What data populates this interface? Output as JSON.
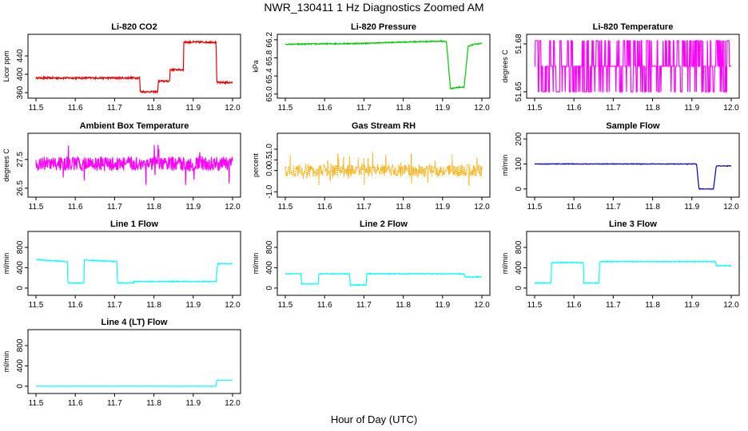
{
  "title": "NWR_130411  1 Hz Diagnostics Zoomed AM",
  "xlabel": "Hour of Day (UTC)",
  "chart_data": [
    {
      "type": "line",
      "title": "Li-820 CO2",
      "ylabel": "Licor ppm",
      "color": "#ee0000",
      "xlim": [
        11.5,
        12.0
      ],
      "xticks": [
        "11.5",
        "11.6",
        "11.7",
        "11.8",
        "11.9",
        "12.0"
      ],
      "ylim": [
        355,
        480
      ],
      "yticks": [
        "360",
        "400",
        "440"
      ],
      "noise": 2,
      "spiky": false,
      "series": [
        {
          "name": "Li-820 CO2",
          "x": [
            11.5,
            11.764,
            11.765,
            11.81,
            11.811,
            11.84,
            11.841,
            11.875,
            11.876,
            11.958,
            11.96,
            12.0
          ],
          "y": [
            392,
            392,
            362,
            362,
            385,
            385,
            410,
            410,
            470,
            470,
            382,
            382
          ]
        }
      ]
    },
    {
      "type": "line",
      "title": "Li-820 Pressure",
      "ylabel": "kPa",
      "color": "#00cc00",
      "xlim": [
        11.5,
        12.0
      ],
      "xticks": [
        "11.5",
        "11.6",
        "11.7",
        "11.8",
        "11.9",
        "12.0"
      ],
      "ylim": [
        64.98,
        66.25
      ],
      "yticks": [
        "65.0",
        "65.4",
        "65.8",
        "66.2"
      ],
      "noise": 0.012,
      "spiky": false,
      "series": [
        {
          "name": "Li-820 Pressure",
          "x": [
            11.5,
            11.7,
            11.8,
            11.905,
            11.91,
            11.92,
            11.94,
            11.955,
            11.965,
            11.98,
            12.0
          ],
          "y": [
            66.1,
            66.12,
            66.15,
            66.17,
            66.15,
            65.12,
            65.15,
            65.16,
            66.05,
            66.1,
            66.12
          ]
        }
      ]
    },
    {
      "type": "line",
      "title": "Li-820 Temperature",
      "ylabel": "degrees C",
      "color": "#ff00ff",
      "xlim": [
        11.5,
        12.0
      ],
      "xticks": [
        "11.5",
        "11.6",
        "11.7",
        "11.8",
        "11.9",
        "12.0"
      ],
      "ylim": [
        51.648,
        51.684
      ],
      "yticks": [
        "51.65",
        "51.68"
      ],
      "noise": 0,
      "spiky": false,
      "levels": [
        51.65,
        51.666,
        51.682
      ],
      "series": [
        {
          "name": "Li-820 Temperature",
          "x": [
            11.5,
            12.0
          ],
          "y": [
            51.666,
            51.666
          ]
        }
      ]
    },
    {
      "type": "line",
      "title": "Ambient Box Temperature",
      "ylabel": "degrees C",
      "color": "#ff00ff",
      "xlim": [
        11.5,
        12.0
      ],
      "xticks": [
        "11.5",
        "11.6",
        "11.7",
        "11.8",
        "11.9",
        "12.0"
      ],
      "ylim": [
        26.3,
        28.3
      ],
      "yticks": [
        "26.5",
        "27.5"
      ],
      "noise": 0.25,
      "spiky": true,
      "series": [
        {
          "name": "Ambient Box Temperature",
          "x": [
            11.5,
            12.0
          ],
          "y": [
            27.35,
            27.35
          ]
        }
      ]
    },
    {
      "type": "line",
      "title": "Gas Stream RH",
      "ylabel": "percent",
      "color": "#ffaa00",
      "xlim": [
        11.5,
        12.0
      ],
      "xticks": [
        "11.5",
        "11.6",
        "11.7",
        "11.8",
        "11.9",
        "12.0"
      ],
      "ylim": [
        -1.1,
        1.6
      ],
      "yticks": [
        "-1.0",
        "0.0",
        "0.5",
        "1.0"
      ],
      "noise": 0.3,
      "spiky": true,
      "dotted": true,
      "series": [
        {
          "name": "Gas Stream RH",
          "x": [
            11.5,
            12.0
          ],
          "y": [
            0.0,
            0.0
          ]
        }
      ]
    },
    {
      "type": "line",
      "title": "Sample Flow",
      "ylabel": "ml/min",
      "color": "#0000cc",
      "xlim": [
        11.5,
        12.0
      ],
      "xticks": [
        "11.5",
        "11.6",
        "11.7",
        "11.8",
        "11.9",
        "12.0"
      ],
      "ylim": [
        -20,
        210
      ],
      "yticks": [
        "0",
        "100",
        "200"
      ],
      "noise": 1.2,
      "spiky": false,
      "series": [
        {
          "name": "Sample Flow",
          "x": [
            11.5,
            11.912,
            11.918,
            11.955,
            11.962,
            12.0
          ],
          "y": [
            100,
            100,
            0,
            0,
            92,
            92
          ]
        }
      ]
    },
    {
      "type": "line",
      "title": "Line 1 Flow",
      "ylabel": "ml/min",
      "color": "#00ffff",
      "xlim": [
        11.5,
        12.0
      ],
      "xticks": [
        "11.5",
        "11.6",
        "11.7",
        "11.8",
        "11.9",
        "12.0"
      ],
      "ylim": [
        -80,
        1050
      ],
      "yticks": [
        "0",
        "400",
        "800"
      ],
      "noise": 8,
      "spiky": false,
      "series": [
        {
          "name": "Line 1 Flow",
          "x": [
            11.5,
            11.58,
            11.581,
            11.622,
            11.623,
            11.706,
            11.707,
            11.748,
            11.749,
            11.958,
            11.962,
            12.0
          ],
          "y": [
            560,
            520,
            100,
            100,
            550,
            520,
            100,
            100,
            130,
            130,
            480,
            480
          ]
        }
      ]
    },
    {
      "type": "line",
      "title": "Line 2 Flow",
      "ylabel": "ml/min",
      "color": "#00ffff",
      "xlim": [
        11.5,
        12.0
      ],
      "xticks": [
        "11.5",
        "11.6",
        "11.7",
        "11.8",
        "11.9",
        "12.0"
      ],
      "ylim": [
        -80,
        1050
      ],
      "yticks": [
        "0",
        "400",
        "800"
      ],
      "noise": 8,
      "spiky": false,
      "series": [
        {
          "name": "Line 2 Flow",
          "x": [
            11.5,
            11.54,
            11.541,
            11.584,
            11.585,
            11.664,
            11.665,
            11.706,
            11.707,
            11.955,
            11.956,
            12.0
          ],
          "y": [
            280,
            280,
            80,
            80,
            280,
            280,
            60,
            60,
            280,
            280,
            220,
            220
          ]
        }
      ]
    },
    {
      "type": "line",
      "title": "Line 3 Flow",
      "ylabel": "ml/min",
      "color": "#00ffff",
      "xlim": [
        11.5,
        12.0
      ],
      "xticks": [
        "11.5",
        "11.6",
        "11.7",
        "11.8",
        "11.9",
        "12.0"
      ],
      "ylim": [
        -80,
        1050
      ],
      "yticks": [
        "0",
        "400",
        "800"
      ],
      "noise": 8,
      "spiky": false,
      "series": [
        {
          "name": "Line 3 Flow",
          "x": [
            11.5,
            11.542,
            11.543,
            11.624,
            11.625,
            11.664,
            11.665,
            11.92,
            11.96,
            11.962,
            12.0
          ],
          "y": [
            100,
            100,
            500,
            500,
            100,
            100,
            520,
            520,
            520,
            440,
            440
          ]
        }
      ]
    },
    {
      "type": "line",
      "title": "Line 4 (LT) Flow",
      "ylabel": "ml/min",
      "color": "#00ffff",
      "xlim": [
        11.5,
        12.0
      ],
      "xticks": [
        "11.5",
        "11.6",
        "11.7",
        "11.8",
        "11.9",
        "12.0"
      ],
      "ylim": [
        -80,
        1050
      ],
      "yticks": [
        "0",
        "400",
        "800"
      ],
      "noise": 2,
      "spiky": false,
      "series": [
        {
          "name": "Line 4 (LT) Flow",
          "x": [
            11.5,
            11.958,
            11.96,
            12.0
          ],
          "y": [
            0,
            0,
            120,
            120
          ]
        }
      ]
    }
  ]
}
